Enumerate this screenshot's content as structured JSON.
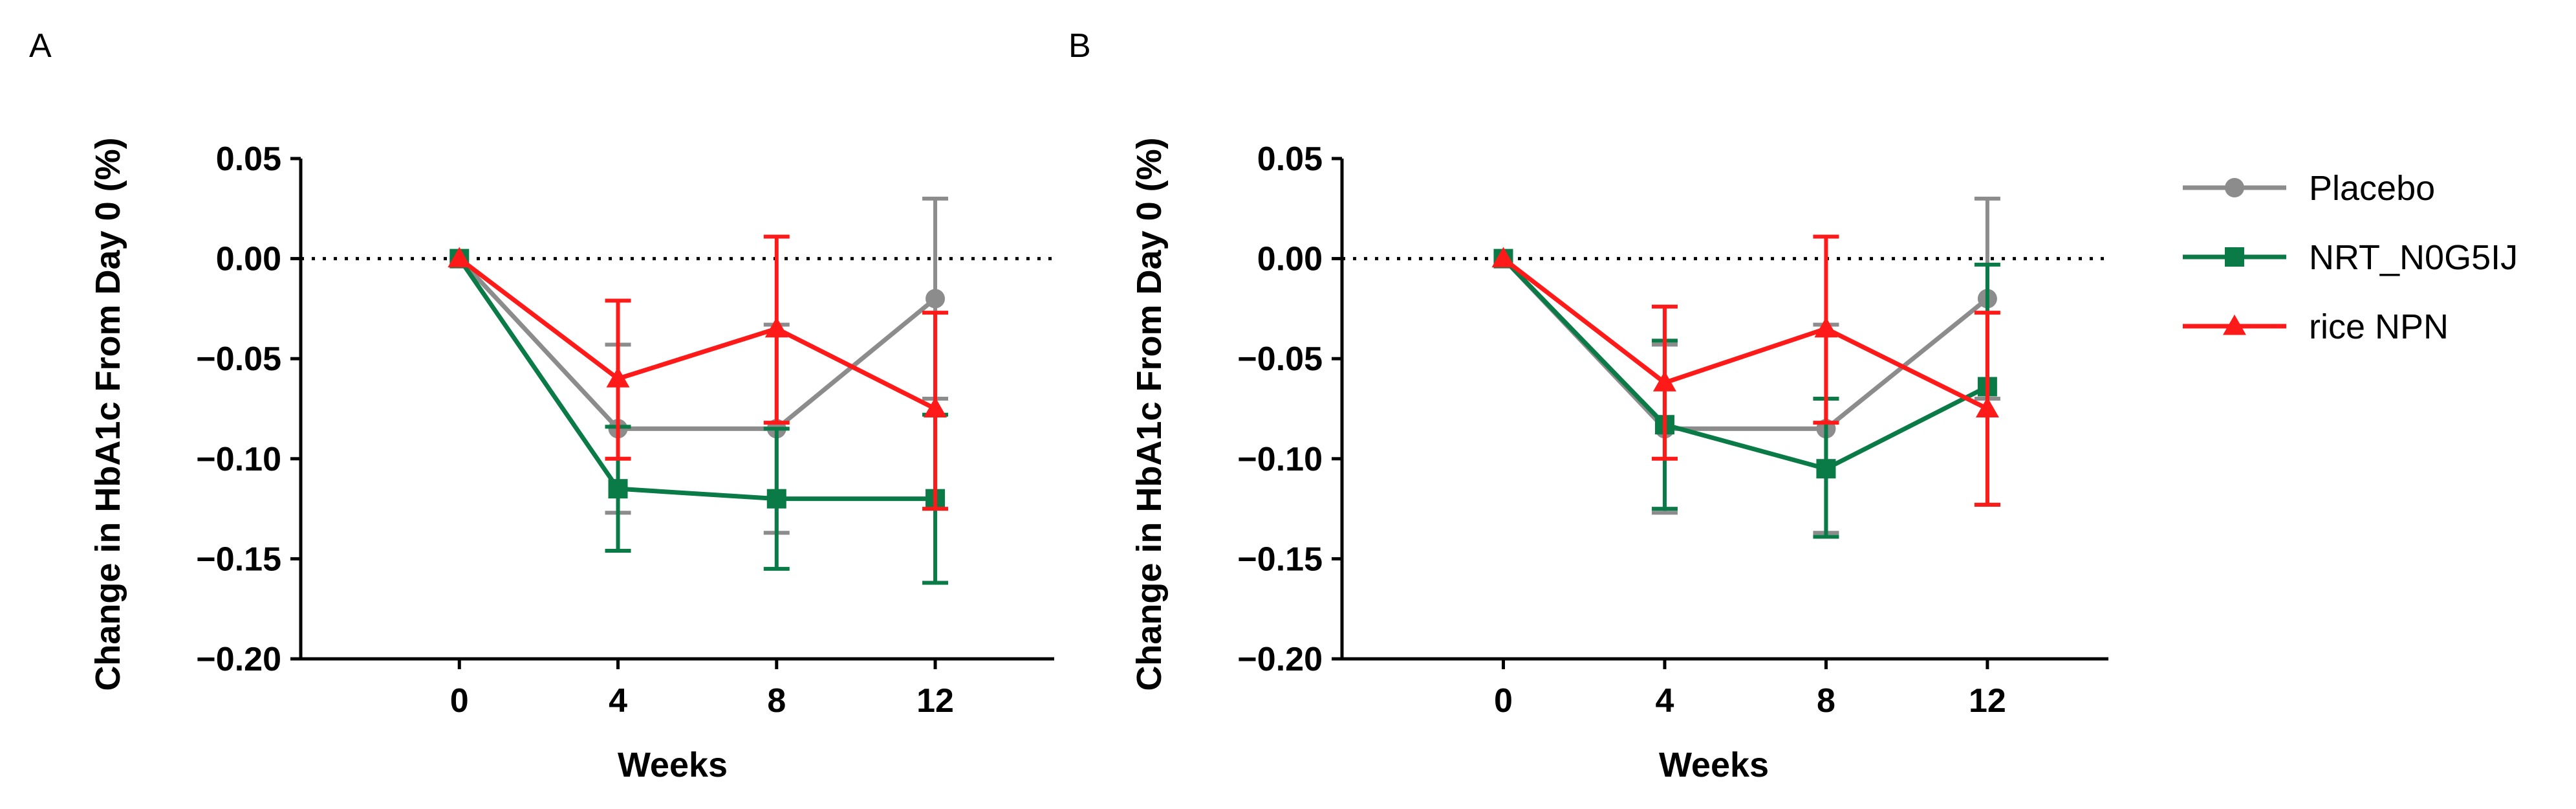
{
  "chart_data": [
    {
      "type": "line",
      "panel": "A",
      "xlabel": "Weeks",
      "ylabel": "Change in HbA1c From Day 0 (%)",
      "x": [
        0,
        4,
        8,
        12
      ],
      "x_tick_labels": [
        "0",
        "4",
        "8",
        "12"
      ],
      "xlim": [
        -4,
        15
      ],
      "ylim": [
        -0.2,
        0.05
      ],
      "y_ticks": [
        0.05,
        0.0,
        -0.05,
        -0.1,
        -0.15,
        -0.2
      ],
      "y_tick_labels": [
        "0.05",
        "0.00",
        "−0.05",
        "−0.10",
        "−0.15",
        "−0.20"
      ],
      "reference_line": 0,
      "series": [
        {
          "name": "Placebo",
          "color": "#8c8c8c",
          "marker": "circle",
          "values": [
            0,
            -0.085,
            -0.085,
            -0.02
          ],
          "err_low": [
            0,
            -0.127,
            -0.137,
            -0.07
          ],
          "err_high": [
            0,
            -0.043,
            -0.033,
            0.03
          ]
        },
        {
          "name": "NRT_N0G5IJ",
          "color": "#0a7a47",
          "marker": "square",
          "values": [
            0,
            -0.115,
            -0.12,
            -0.12
          ],
          "err_low": [
            0,
            -0.146,
            -0.155,
            -0.162
          ],
          "err_high": [
            0,
            -0.084,
            -0.085,
            -0.078
          ]
        },
        {
          "name": "rice NPN",
          "color": "#ff1a1a",
          "marker": "triangle",
          "values": [
            0,
            -0.06,
            -0.035,
            -0.075
          ],
          "err_low": [
            0,
            -0.1,
            -0.082,
            -0.125
          ],
          "err_high": [
            0,
            -0.021,
            0.011,
            -0.027
          ]
        }
      ]
    },
    {
      "type": "line",
      "panel": "B",
      "xlabel": "Weeks",
      "ylabel": "Change in HbA1c From Day 0 (%)",
      "x": [
        0,
        4,
        8,
        12
      ],
      "x_tick_labels": [
        "0",
        "4",
        "8",
        "12"
      ],
      "xlim": [
        -4,
        15
      ],
      "ylim": [
        -0.2,
        0.05
      ],
      "y_ticks": [
        0.05,
        0.0,
        -0.05,
        -0.1,
        -0.15,
        -0.2
      ],
      "y_tick_labels": [
        "0.05",
        "0.00",
        "−0.05",
        "−0.10",
        "−0.15",
        "−0.20"
      ],
      "reference_line": 0,
      "series": [
        {
          "name": "Placebo",
          "color": "#8c8c8c",
          "marker": "circle",
          "values": [
            0,
            -0.085,
            -0.085,
            -0.02
          ],
          "err_low": [
            0,
            -0.127,
            -0.137,
            -0.07
          ],
          "err_high": [
            0,
            -0.043,
            -0.033,
            0.03
          ]
        },
        {
          "name": "NRT_N0G5IJ",
          "color": "#0a7a47",
          "marker": "square",
          "values": [
            0,
            -0.083,
            -0.105,
            -0.064
          ],
          "err_low": [
            0,
            -0.125,
            -0.139,
            -0.123
          ],
          "err_high": [
            0,
            -0.041,
            -0.07,
            -0.003
          ]
        },
        {
          "name": "rice NPN",
          "color": "#ff1a1a",
          "marker": "triangle",
          "values": [
            0,
            -0.062,
            -0.035,
            -0.075
          ],
          "err_low": [
            0,
            -0.1,
            -0.082,
            -0.123
          ],
          "err_high": [
            0,
            -0.024,
            0.011,
            -0.027
          ]
        }
      ]
    }
  ],
  "legend": {
    "placement": "right",
    "items": [
      {
        "label": "Placebo",
        "color": "#8c8c8c",
        "marker": "circle"
      },
      {
        "label": "NRT_N0G5IJ",
        "color": "#0a7a47",
        "marker": "square"
      },
      {
        "label": "rice NPN",
        "color": "#ff1a1a",
        "marker": "triangle"
      }
    ]
  }
}
